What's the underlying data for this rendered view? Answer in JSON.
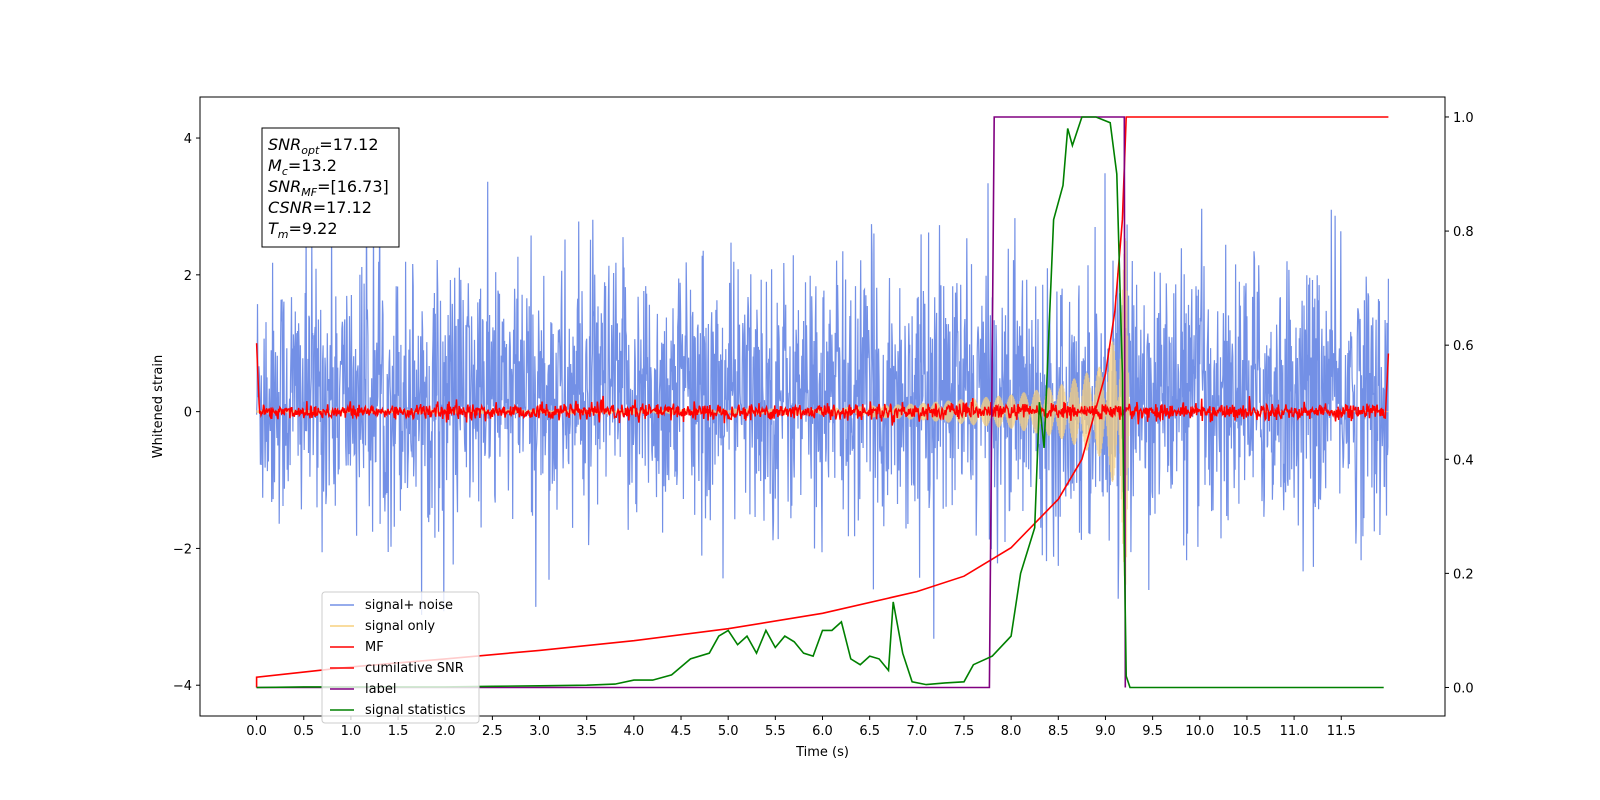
{
  "chart_data": {
    "type": "line",
    "xlabel": "Time (s)",
    "ylabel": "Whitened strain",
    "xlim": [
      -0.6,
      12.6
    ],
    "ylim": [
      -4.45,
      4.6
    ],
    "y2lim": [
      -0.05,
      1.035
    ],
    "x_ticks": [
      "0.0",
      "0.5",
      "1.0",
      "1.5",
      "2.0",
      "2.5",
      "3.0",
      "3.5",
      "4.0",
      "4.5",
      "5.0",
      "5.5",
      "6.0",
      "6.5",
      "7.0",
      "7.5",
      "8.0",
      "8.5",
      "9.0",
      "9.5",
      "10.0",
      "10.5",
      "11.0",
      "11.5"
    ],
    "y_ticks": [
      "4",
      "2",
      "0",
      "−2",
      "−4"
    ],
    "y2_ticks": [
      "1.0",
      "0.8",
      "0.6",
      "0.4",
      "0.2",
      "0.0"
    ],
    "info_box": [
      {
        "name": "SNR",
        "sub": "opt",
        "value": "=17.12"
      },
      {
        "name": "M",
        "sub": "c",
        "value": "=13.2"
      },
      {
        "name": "SNR",
        "sub": "MF",
        "value": "=[16.73]"
      },
      {
        "name": "CSNR",
        "sub": "",
        "value": "=17.12"
      },
      {
        "name": "T",
        "sub": "m",
        "value": "=9.22"
      }
    ],
    "legend": {
      "placement": "lower-left",
      "entries": [
        {
          "label": "signal+ noise",
          "color": "#7390e6"
        },
        {
          "label": "signal only",
          "color": "#f7d07f"
        },
        {
          "label": "MF",
          "color": "#ff0000"
        },
        {
          "label": "cumilative SNR",
          "color": "#ff0000"
        },
        {
          "label": "label",
          "color": "#800080"
        },
        {
          "label": "signal statistics",
          "color": "#008000"
        }
      ]
    },
    "series": [
      {
        "name": "signal+ noise",
        "axis": "left",
        "color": "#7390e6",
        "t_range": [
          0,
          12
        ],
        "description_values": {
          "typical_envelope": [
            -2.3,
            2.5
          ],
          "extreme_peaks": [
            -3.6,
            3.9
          ]
        }
      },
      {
        "name": "signal only",
        "axis": "left",
        "color": "#f7d07f",
        "t_range": [
          0,
          12
        ],
        "amplitude_points": [
          [
            0.0,
            0.02
          ],
          [
            6.0,
            0.05
          ],
          [
            7.0,
            0.12
          ],
          [
            8.0,
            0.25
          ],
          [
            8.5,
            0.38
          ],
          [
            9.0,
            0.7
          ],
          [
            9.15,
            1.4
          ],
          [
            9.22,
            2.8
          ],
          [
            9.26,
            0.0
          ],
          [
            12.0,
            0.0
          ]
        ]
      },
      {
        "name": "MF",
        "axis": "left",
        "color": "#ff0000",
        "t_range": [
          0,
          12
        ],
        "points": [
          [
            0.0,
            1.0
          ],
          [
            0.03,
            0.0
          ],
          [
            11.97,
            0.0
          ],
          [
            12.0,
            0.85
          ]
        ],
        "noise_amplitude": 0.06
      },
      {
        "name": "cumilative SNR",
        "axis": "right",
        "color": "#ff0000",
        "points": [
          [
            0.0,
            0.0
          ],
          [
            0.0,
            0.018
          ],
          [
            0.5,
            0.027
          ],
          [
            1.0,
            0.036
          ],
          [
            2.0,
            0.05
          ],
          [
            3.0,
            0.065
          ],
          [
            4.0,
            0.082
          ],
          [
            5.0,
            0.103
          ],
          [
            6.0,
            0.13
          ],
          [
            7.0,
            0.168
          ],
          [
            7.5,
            0.195
          ],
          [
            8.0,
            0.245
          ],
          [
            8.5,
            0.33
          ],
          [
            8.75,
            0.4
          ],
          [
            9.0,
            0.55
          ],
          [
            9.1,
            0.66
          ],
          [
            9.18,
            0.82
          ],
          [
            9.22,
            1.0
          ],
          [
            12.0,
            1.0
          ]
        ]
      },
      {
        "name": "label",
        "axis": "right",
        "color": "#800080",
        "points": [
          [
            0.0,
            0.0
          ],
          [
            7.77,
            0.0
          ],
          [
            7.82,
            1.0
          ],
          [
            9.2,
            1.0
          ],
          [
            9.21,
            0.0
          ]
        ]
      },
      {
        "name": "signal statistics",
        "axis": "right",
        "color": "#008000",
        "points": [
          [
            0.0,
            0.0
          ],
          [
            0.5,
            0.001
          ],
          [
            1.0,
            0.001
          ],
          [
            2.0,
            0.001
          ],
          [
            2.5,
            0.002
          ],
          [
            3.0,
            0.003
          ],
          [
            3.5,
            0.004
          ],
          [
            3.8,
            0.006
          ],
          [
            4.0,
            0.013
          ],
          [
            4.2,
            0.013
          ],
          [
            4.4,
            0.022
          ],
          [
            4.6,
            0.05
          ],
          [
            4.8,
            0.06
          ],
          [
            4.9,
            0.09
          ],
          [
            5.0,
            0.1
          ],
          [
            5.1,
            0.075
          ],
          [
            5.2,
            0.09
          ],
          [
            5.3,
            0.06
          ],
          [
            5.4,
            0.1
          ],
          [
            5.5,
            0.07
          ],
          [
            5.6,
            0.09
          ],
          [
            5.7,
            0.08
          ],
          [
            5.8,
            0.06
          ],
          [
            5.9,
            0.055
          ],
          [
            6.0,
            0.1
          ],
          [
            6.1,
            0.1
          ],
          [
            6.2,
            0.115
          ],
          [
            6.3,
            0.05
          ],
          [
            6.4,
            0.04
          ],
          [
            6.5,
            0.055
          ],
          [
            6.6,
            0.05
          ],
          [
            6.7,
            0.03
          ],
          [
            6.75,
            0.15
          ],
          [
            6.85,
            0.06
          ],
          [
            6.95,
            0.01
          ],
          [
            7.1,
            0.005
          ],
          [
            7.3,
            0.008
          ],
          [
            7.5,
            0.01
          ],
          [
            7.6,
            0.04
          ],
          [
            7.8,
            0.055
          ],
          [
            8.0,
            0.09
          ],
          [
            8.1,
            0.2
          ],
          [
            8.25,
            0.28
          ],
          [
            8.3,
            0.5
          ],
          [
            8.35,
            0.42
          ],
          [
            8.45,
            0.82
          ],
          [
            8.55,
            0.88
          ],
          [
            8.6,
            0.98
          ],
          [
            8.65,
            0.95
          ],
          [
            8.75,
            1.0
          ],
          [
            8.9,
            1.0
          ],
          [
            9.05,
            0.99
          ],
          [
            9.12,
            0.9
          ],
          [
            9.18,
            0.55
          ],
          [
            9.2,
            0.25
          ],
          [
            9.22,
            0.02
          ],
          [
            9.26,
            0.0
          ],
          [
            11.95,
            0.0
          ]
        ]
      }
    ]
  }
}
